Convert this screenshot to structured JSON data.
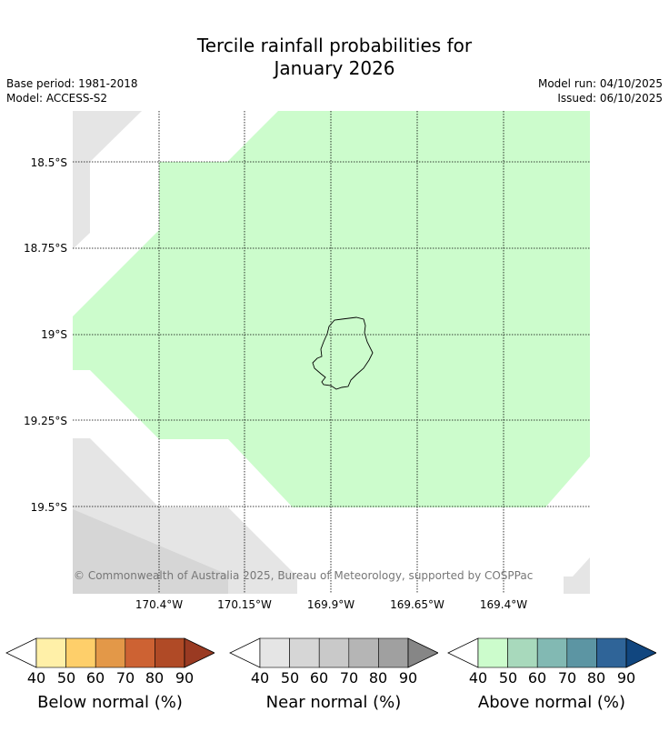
{
  "title_line1": "Tercile rainfall probabilities for",
  "title_line2": "January 2026",
  "meta_left": [
    "Base period: 1981-2018",
    "Model: ACCESS-S2"
  ],
  "meta_right": [
    "Model run: 04/10/2025",
    "Issued: 06/10/2025"
  ],
  "copyright": "© Commonwealth of Australia 2025, Bureau of Meteorology, supported by COSPPac",
  "latitude_labels": [
    "18.5°S",
    "18.75°S",
    "19°S",
    "19.25°S",
    "19.5°S"
  ],
  "longitude_labels": [
    "170.4°W",
    "170.15°W",
    "169.9°W",
    "169.65°W",
    "169.4°W"
  ],
  "colors": {
    "above_40": "#ccfccc",
    "near_40": "#e5e5e5",
    "near_50": "#d6d6d6",
    "land_outline": "#000000"
  },
  "legends": [
    {
      "label": "Below normal (%)",
      "ticks": [
        "40",
        "50",
        "60",
        "70",
        "80",
        "90"
      ],
      "colors": [
        "#fff0a8",
        "#fecf6a",
        "#e39848",
        "#cd6233",
        "#b04a26"
      ],
      "extend_color": "#9a3a22"
    },
    {
      "label": "Near normal (%)",
      "ticks": [
        "40",
        "50",
        "60",
        "70",
        "80",
        "90"
      ],
      "colors": [
        "#e5e5e5",
        "#d6d6d6",
        "#c9c9c9",
        "#b5b5b5",
        "#a0a0a0"
      ],
      "extend_color": "#868686"
    },
    {
      "label": "Above normal (%)",
      "ticks": [
        "40",
        "50",
        "60",
        "70",
        "80",
        "90"
      ],
      "colors": [
        "#ccfccc",
        "#a8d9bc",
        "#82b9b3",
        "#5c95a3",
        "#2f6498"
      ],
      "extend_color": "#11467f"
    }
  ]
}
